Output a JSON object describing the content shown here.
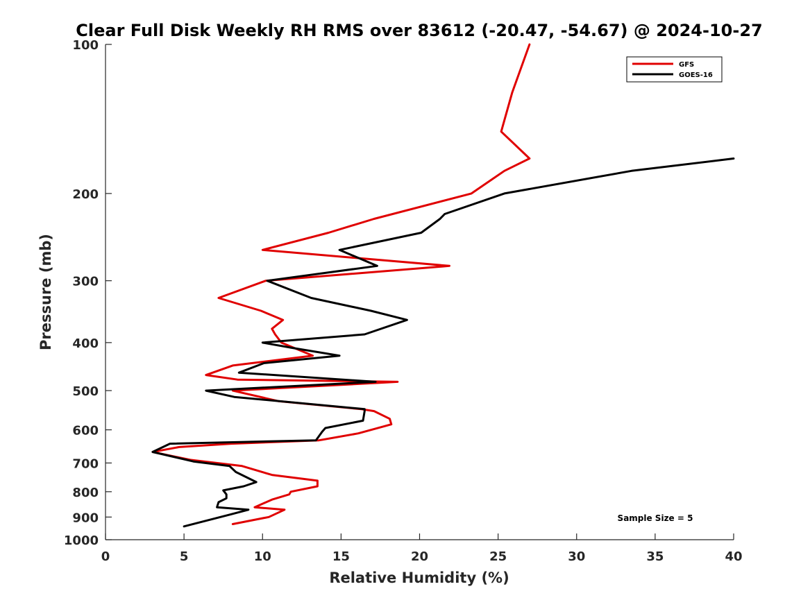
{
  "chart_data": {
    "type": "line",
    "title": "Clear Full Disk Weekly RH RMS over 83612 (-20.47, -54.67) @ 2024-10-27",
    "xlabel": "Relative Humidity (%)",
    "ylabel": "Pressure (mb)",
    "xlim": [
      0,
      40
    ],
    "ylim": [
      100,
      1000
    ],
    "yscale": "log",
    "yreversed": true,
    "grid": false,
    "legend_position": "top-right",
    "xticks": [
      0,
      5,
      10,
      15,
      20,
      25,
      30,
      35,
      40
    ],
    "yticks": [
      100,
      200,
      300,
      400,
      500,
      600,
      700,
      800,
      900,
      1000
    ],
    "annotation": "Sample Size = 5",
    "series": [
      {
        "name": "GFS",
        "color": "#e00000",
        "points": [
          [
            27.0,
            100
          ],
          [
            25.9,
            125
          ],
          [
            25.2,
            150
          ],
          [
            27.0,
            170
          ],
          [
            25.4,
            180
          ],
          [
            23.3,
            200
          ],
          [
            17.1,
            225
          ],
          [
            14.2,
            240
          ],
          [
            10.0,
            260
          ],
          [
            21.9,
            280
          ],
          [
            10.2,
            300
          ],
          [
            7.2,
            325
          ],
          [
            9.9,
            345
          ],
          [
            11.3,
            360
          ],
          [
            10.6,
            375
          ],
          [
            10.8,
            385
          ],
          [
            11.2,
            400
          ],
          [
            13.2,
            425
          ],
          [
            8.1,
            445
          ],
          [
            6.4,
            465
          ],
          [
            8.4,
            475
          ],
          [
            18.6,
            480
          ],
          [
            8.1,
            500
          ],
          [
            11.0,
            525
          ],
          [
            16.3,
            545
          ],
          [
            17.1,
            550
          ],
          [
            18.1,
            570
          ],
          [
            18.2,
            585
          ],
          [
            16.1,
            610
          ],
          [
            13.6,
            630
          ],
          [
            8.0,
            640
          ],
          [
            4.7,
            650
          ],
          [
            3.0,
            665
          ],
          [
            5.4,
            690
          ],
          [
            8.7,
            710
          ],
          [
            10.6,
            740
          ],
          [
            13.5,
            760
          ],
          [
            13.5,
            780
          ],
          [
            11.8,
            800
          ],
          [
            11.7,
            810
          ],
          [
            10.6,
            830
          ],
          [
            9.5,
            860
          ],
          [
            11.4,
            870
          ],
          [
            10.4,
            900
          ],
          [
            8.1,
            930
          ]
        ]
      },
      {
        "name": "GOES-16",
        "color": "#000000",
        "points": [
          [
            40.0,
            170
          ],
          [
            33.5,
            180
          ],
          [
            25.4,
            200
          ],
          [
            21.6,
            220
          ],
          [
            21.3,
            225
          ],
          [
            20.1,
            240
          ],
          [
            14.9,
            260
          ],
          [
            17.3,
            280
          ],
          [
            10.3,
            300
          ],
          [
            13.1,
            325
          ],
          [
            16.9,
            345
          ],
          [
            19.2,
            360
          ],
          [
            16.5,
            385
          ],
          [
            10.0,
            400
          ],
          [
            11.9,
            410
          ],
          [
            14.9,
            425
          ],
          [
            10.1,
            440
          ],
          [
            8.5,
            460
          ],
          [
            17.2,
            480
          ],
          [
            6.4,
            500
          ],
          [
            8.2,
            515
          ],
          [
            16.5,
            545
          ],
          [
            16.5,
            550
          ],
          [
            16.4,
            575
          ],
          [
            14.0,
            595
          ],
          [
            13.8,
            605
          ],
          [
            13.4,
            630
          ],
          [
            4.1,
            640
          ],
          [
            3.0,
            665
          ],
          [
            5.6,
            695
          ],
          [
            7.9,
            710
          ],
          [
            8.3,
            730
          ],
          [
            9.6,
            765
          ],
          [
            8.8,
            780
          ],
          [
            7.5,
            795
          ],
          [
            7.7,
            810
          ],
          [
            7.7,
            825
          ],
          [
            7.2,
            840
          ],
          [
            7.1,
            860
          ],
          [
            9.1,
            870
          ],
          [
            7.9,
            890
          ],
          [
            5.0,
            940
          ]
        ]
      }
    ]
  }
}
